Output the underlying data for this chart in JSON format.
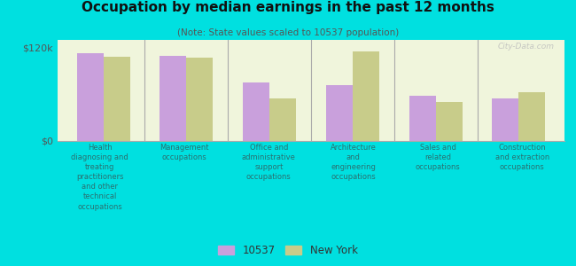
{
  "title": "Occupation by median earnings in the past 12 months",
  "subtitle": "(Note: State values scaled to 10537 population)",
  "categories": [
    "Health\ndiagnosing and\ntreating\npractitioners\nand other\ntechnical\noccupations",
    "Management\noccupations",
    "Office and\nadministrative\nsupport\noccupations",
    "Architecture\nand\nengineering\noccupations",
    "Sales and\nrelated\noccupations",
    "Construction\nand extraction\noccupations"
  ],
  "values_10537": [
    113000,
    110000,
    75000,
    72000,
    58000,
    55000
  ],
  "values_ny": [
    108000,
    107000,
    55000,
    115000,
    50000,
    63000
  ],
  "color_10537": "#c9a0dc",
  "color_ny": "#c8cc8a",
  "ylim": [
    0,
    130000
  ],
  "yticks": [
    0,
    120000
  ],
  "ytick_labels": [
    "$0",
    "$120k"
  ],
  "legend_10537": "10537",
  "legend_ny": "New York",
  "background_color": "#f0f5dc",
  "outer_background": "#00e0e0",
  "watermark": "City-Data.com"
}
